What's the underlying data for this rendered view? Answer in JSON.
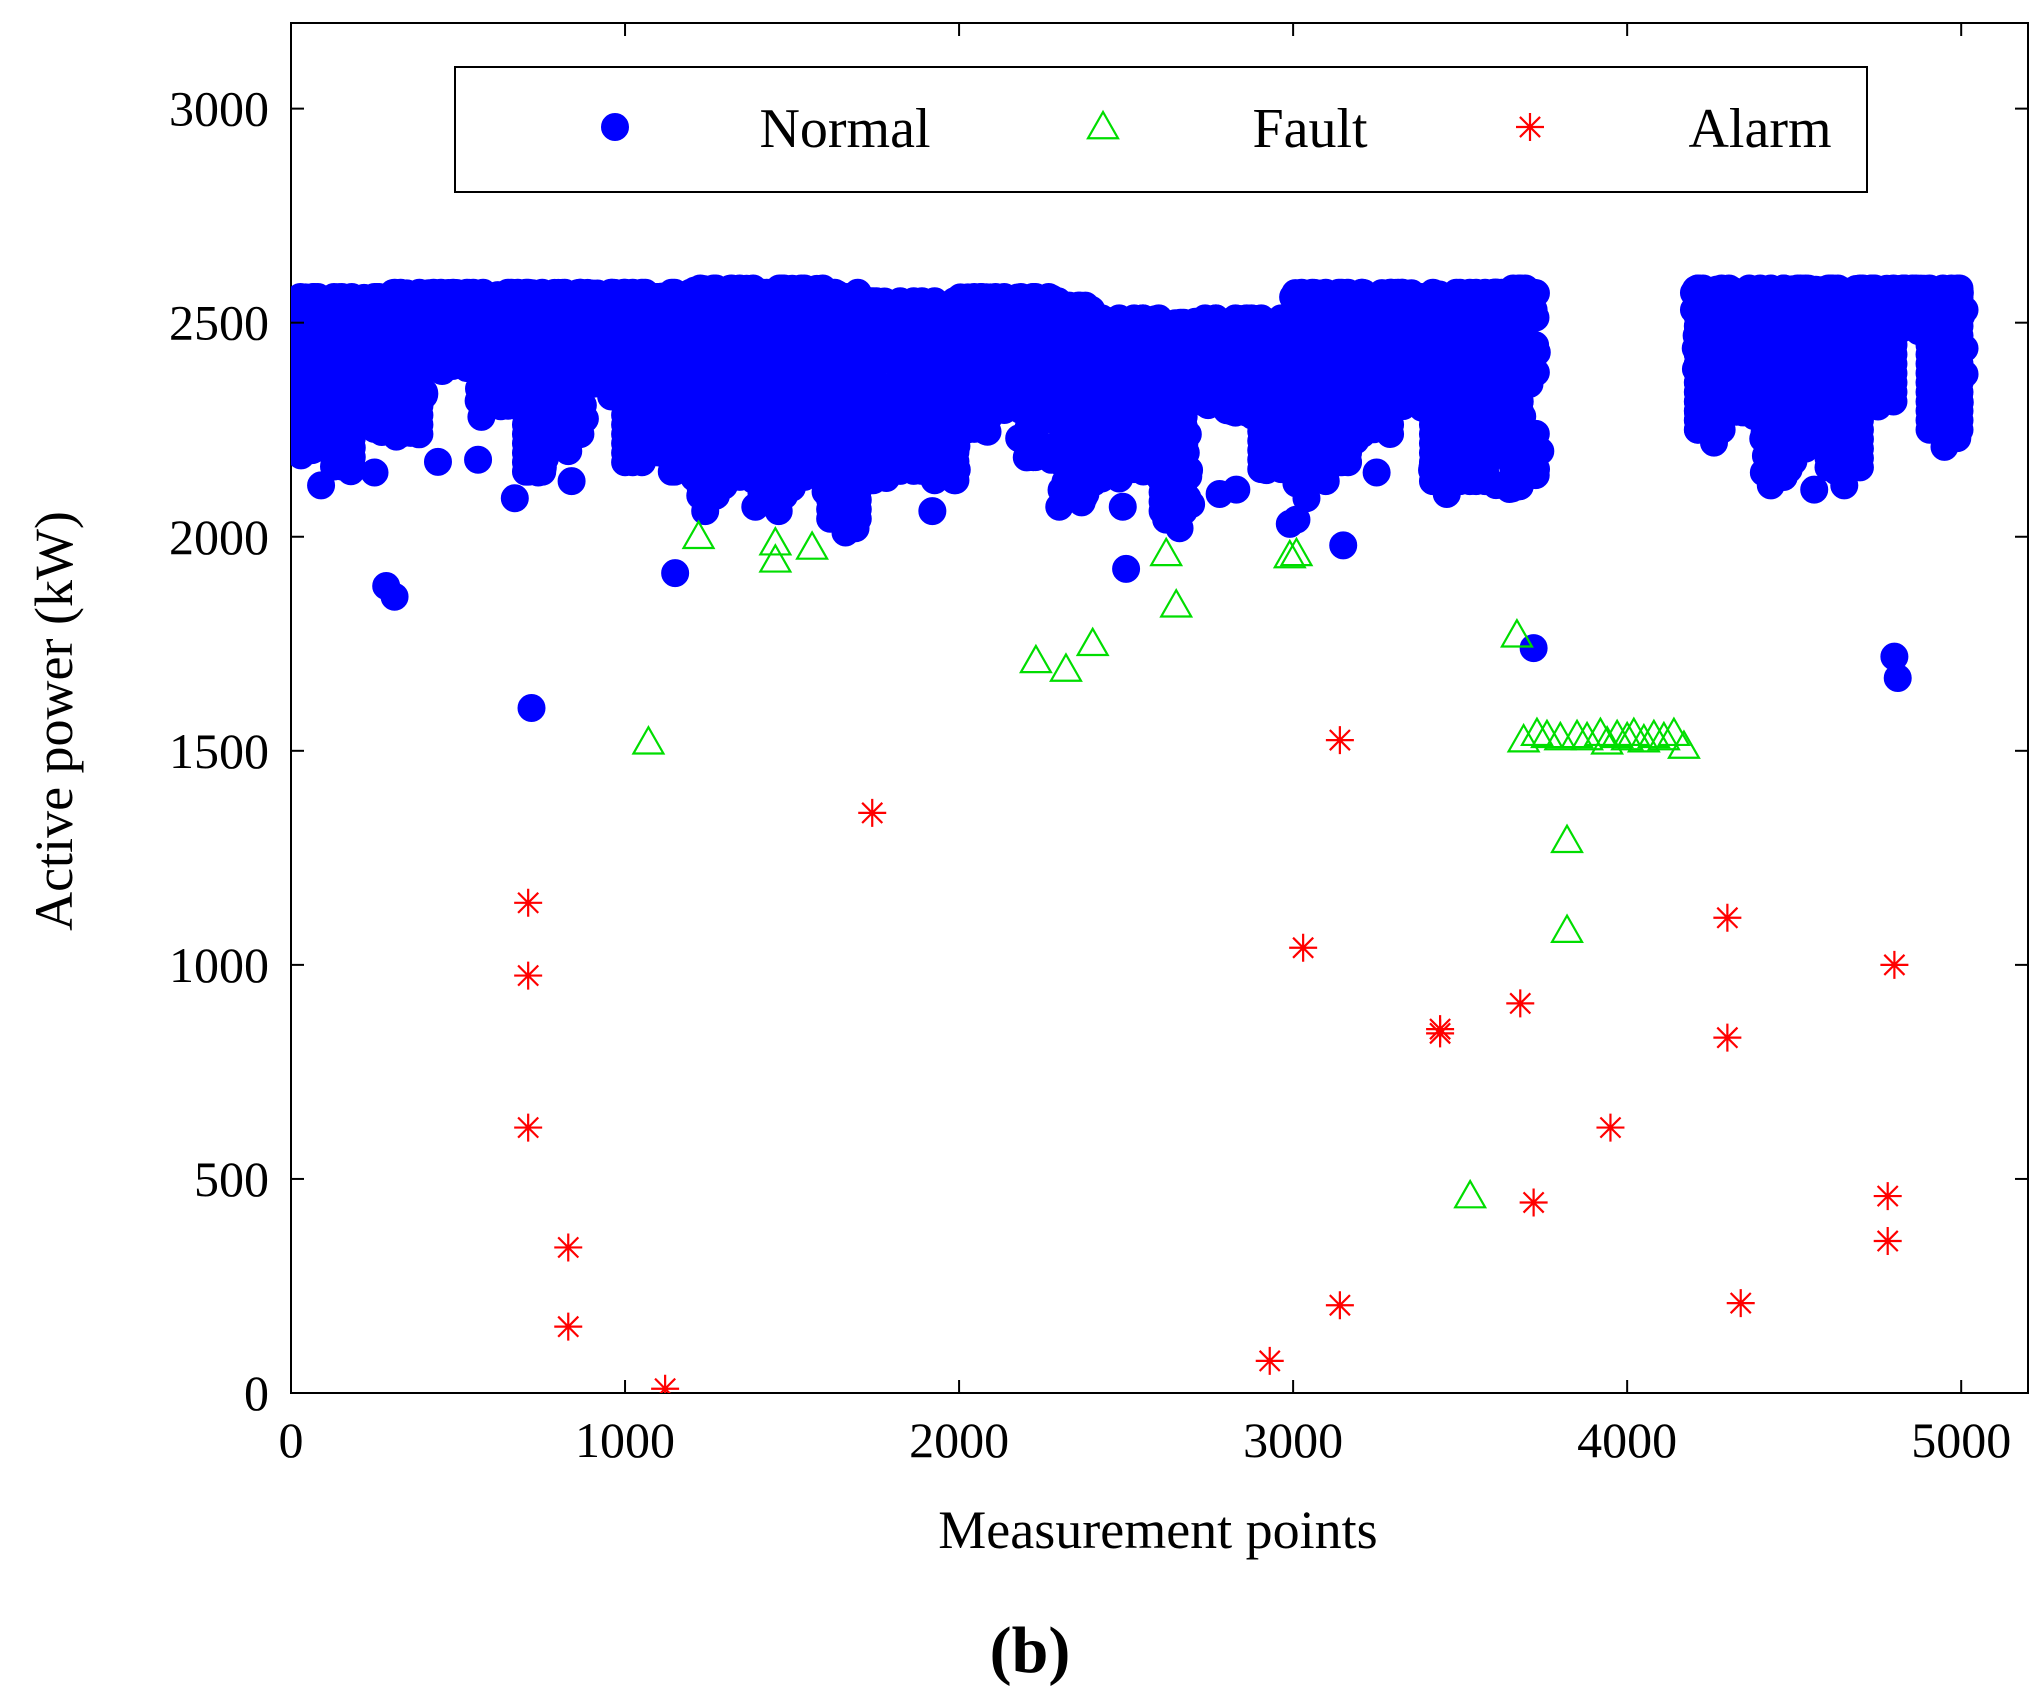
{
  "chart_data": {
    "type": "scatter",
    "xlabel": "Measurement points",
    "ylabel": "Active power (kW)",
    "panel_label": "(b)",
    "xlim": [
      0,
      5200
    ],
    "ylim": [
      0,
      3200
    ],
    "x_ticks": [
      0,
      1000,
      2000,
      3000,
      4000,
      5000
    ],
    "y_ticks": [
      0,
      500,
      1000,
      1500,
      2000,
      2500,
      3000
    ],
    "grid": false,
    "legend": {
      "position": "top",
      "orientation": "horizontal"
    },
    "series": [
      {
        "name": "Normal",
        "marker": "filled-circle",
        "color": "#0000ff",
        "bands": [
          [
            0,
            100,
            2200,
            2560
          ],
          [
            100,
            200,
            2150,
            2560
          ],
          [
            200,
            300,
            2240,
            2560
          ],
          [
            300,
            400,
            2230,
            2570
          ],
          [
            400,
            560,
            2380,
            2570
          ],
          [
            560,
            700,
            2300,
            2570
          ],
          [
            700,
            800,
            2140,
            2570
          ],
          [
            800,
            900,
            2230,
            2570
          ],
          [
            900,
            1000,
            2310,
            2570
          ],
          [
            1000,
            1100,
            2170,
            2570
          ],
          [
            1100,
            1200,
            2150,
            2570
          ],
          [
            1200,
            1300,
            2080,
            2580
          ],
          [
            1300,
            1400,
            2120,
            2580
          ],
          [
            1400,
            1500,
            2090,
            2580
          ],
          [
            1500,
            1600,
            2130,
            2580
          ],
          [
            1600,
            1700,
            2040,
            2570
          ],
          [
            1700,
            1800,
            2130,
            2550
          ],
          [
            1800,
            1900,
            2140,
            2550
          ],
          [
            1900,
            2000,
            2120,
            2550
          ],
          [
            2000,
            2100,
            2240,
            2560
          ],
          [
            2100,
            2200,
            2290,
            2560
          ],
          [
            2200,
            2300,
            2170,
            2560
          ],
          [
            2300,
            2400,
            2080,
            2540
          ],
          [
            2400,
            2500,
            2120,
            2510
          ],
          [
            2500,
            2600,
            2150,
            2510
          ],
          [
            2600,
            2700,
            2060,
            2500
          ],
          [
            2700,
            2800,
            2300,
            2510
          ],
          [
            2800,
            2900,
            2280,
            2510
          ],
          [
            2900,
            3000,
            2150,
            2510
          ],
          [
            3000,
            3100,
            2110,
            2570
          ],
          [
            3100,
            3200,
            2170,
            2570
          ],
          [
            3200,
            3300,
            2240,
            2570
          ],
          [
            3300,
            3400,
            2300,
            2570
          ],
          [
            3400,
            3500,
            2120,
            2570
          ],
          [
            3500,
            3600,
            2130,
            2570
          ],
          [
            3600,
            3730,
            2110,
            2580
          ],
          [
            4200,
            4300,
            2250,
            2580
          ],
          [
            4300,
            4400,
            2280,
            2580
          ],
          [
            4400,
            4500,
            2130,
            2580
          ],
          [
            4500,
            4600,
            2200,
            2580
          ],
          [
            4600,
            4700,
            2150,
            2580
          ],
          [
            4700,
            4800,
            2300,
            2580
          ],
          [
            4800,
            4900,
            2480,
            2580
          ],
          [
            4900,
            5000,
            2230,
            2580
          ]
        ],
        "points": [
          [
            10,
            2230
          ],
          [
            30,
            2190
          ],
          [
            90,
            2120
          ],
          [
            130,
            2170
          ],
          [
            250,
            2150
          ],
          [
            285,
            1885
          ],
          [
            310,
            1860
          ],
          [
            440,
            2175
          ],
          [
            560,
            2180
          ],
          [
            570,
            2280
          ],
          [
            670,
            2090
          ],
          [
            720,
            1600
          ],
          [
            740,
            2150
          ],
          [
            830,
            2200
          ],
          [
            840,
            2130
          ],
          [
            1150,
            1915
          ],
          [
            1240,
            2060
          ],
          [
            1390,
            2070
          ],
          [
            1460,
            2060
          ],
          [
            1660,
            2010
          ],
          [
            1690,
            2020
          ],
          [
            1920,
            2060
          ],
          [
            2180,
            2230
          ],
          [
            2300,
            2070
          ],
          [
            2490,
            2070
          ],
          [
            2500,
            1925
          ],
          [
            2620,
            2040
          ],
          [
            2660,
            2020
          ],
          [
            2780,
            2100
          ],
          [
            2830,
            2110
          ],
          [
            2990,
            2030
          ],
          [
            3010,
            2040
          ],
          [
            3040,
            2090
          ],
          [
            3150,
            1980
          ],
          [
            3250,
            2150
          ],
          [
            3420,
            2130
          ],
          [
            3460,
            2100
          ],
          [
            3720,
            1740
          ],
          [
            3740,
            2200
          ],
          [
            4260,
            2220
          ],
          [
            4430,
            2120
          ],
          [
            4560,
            2110
          ],
          [
            4650,
            2120
          ],
          [
            4800,
            1720
          ],
          [
            4810,
            1670
          ],
          [
            4950,
            2210
          ],
          [
            5010,
            2380
          ],
          [
            5010,
            2440
          ],
          [
            5010,
            2530
          ]
        ]
      },
      {
        "name": "Fault",
        "marker": "open-triangle",
        "color": "#00dd00",
        "points": [
          [
            1070,
            1520
          ],
          [
            1220,
            2000
          ],
          [
            1450,
            1985
          ],
          [
            1450,
            1945
          ],
          [
            1560,
            1975
          ],
          [
            2230,
            1710
          ],
          [
            2320,
            1690
          ],
          [
            2400,
            1750
          ],
          [
            2620,
            1960
          ],
          [
            2650,
            1840
          ],
          [
            2990,
            1955
          ],
          [
            3010,
            1960
          ],
          [
            3530,
            460
          ],
          [
            3670,
            1770
          ],
          [
            3690,
            1525
          ],
          [
            3730,
            1540
          ],
          [
            3760,
            1535
          ],
          [
            3800,
            1530
          ],
          [
            3820,
            1290
          ],
          [
            3820,
            1080
          ],
          [
            3850,
            1535
          ],
          [
            3880,
            1530
          ],
          [
            3920,
            1540
          ],
          [
            3940,
            1520
          ],
          [
            3970,
            1535
          ],
          [
            4000,
            1530
          ],
          [
            4020,
            1540
          ],
          [
            4050,
            1525
          ],
          [
            4080,
            1535
          ],
          [
            4110,
            1530
          ],
          [
            4140,
            1540
          ],
          [
            4170,
            1510
          ]
        ]
      },
      {
        "name": "Alarm",
        "marker": "asterisk",
        "color": "#ff0000",
        "points": [
          [
            710,
            1145
          ],
          [
            710,
            975
          ],
          [
            710,
            620
          ],
          [
            830,
            340
          ],
          [
            830,
            155
          ],
          [
            1120,
            10
          ],
          [
            1740,
            1355
          ],
          [
            2930,
            75
          ],
          [
            3030,
            1040
          ],
          [
            3140,
            1525
          ],
          [
            3140,
            205
          ],
          [
            3440,
            850
          ],
          [
            3440,
            840
          ],
          [
            3680,
            910
          ],
          [
            3720,
            445
          ],
          [
            3950,
            620
          ],
          [
            4300,
            1110
          ],
          [
            4300,
            830
          ],
          [
            4340,
            210
          ],
          [
            4780,
            460
          ],
          [
            4780,
            355
          ],
          [
            4800,
            1000
          ]
        ]
      }
    ]
  },
  "colors": {
    "normal": "#0000ff",
    "fault": "#00dd00",
    "alarm": "#ff0000",
    "axis": "#000000"
  }
}
